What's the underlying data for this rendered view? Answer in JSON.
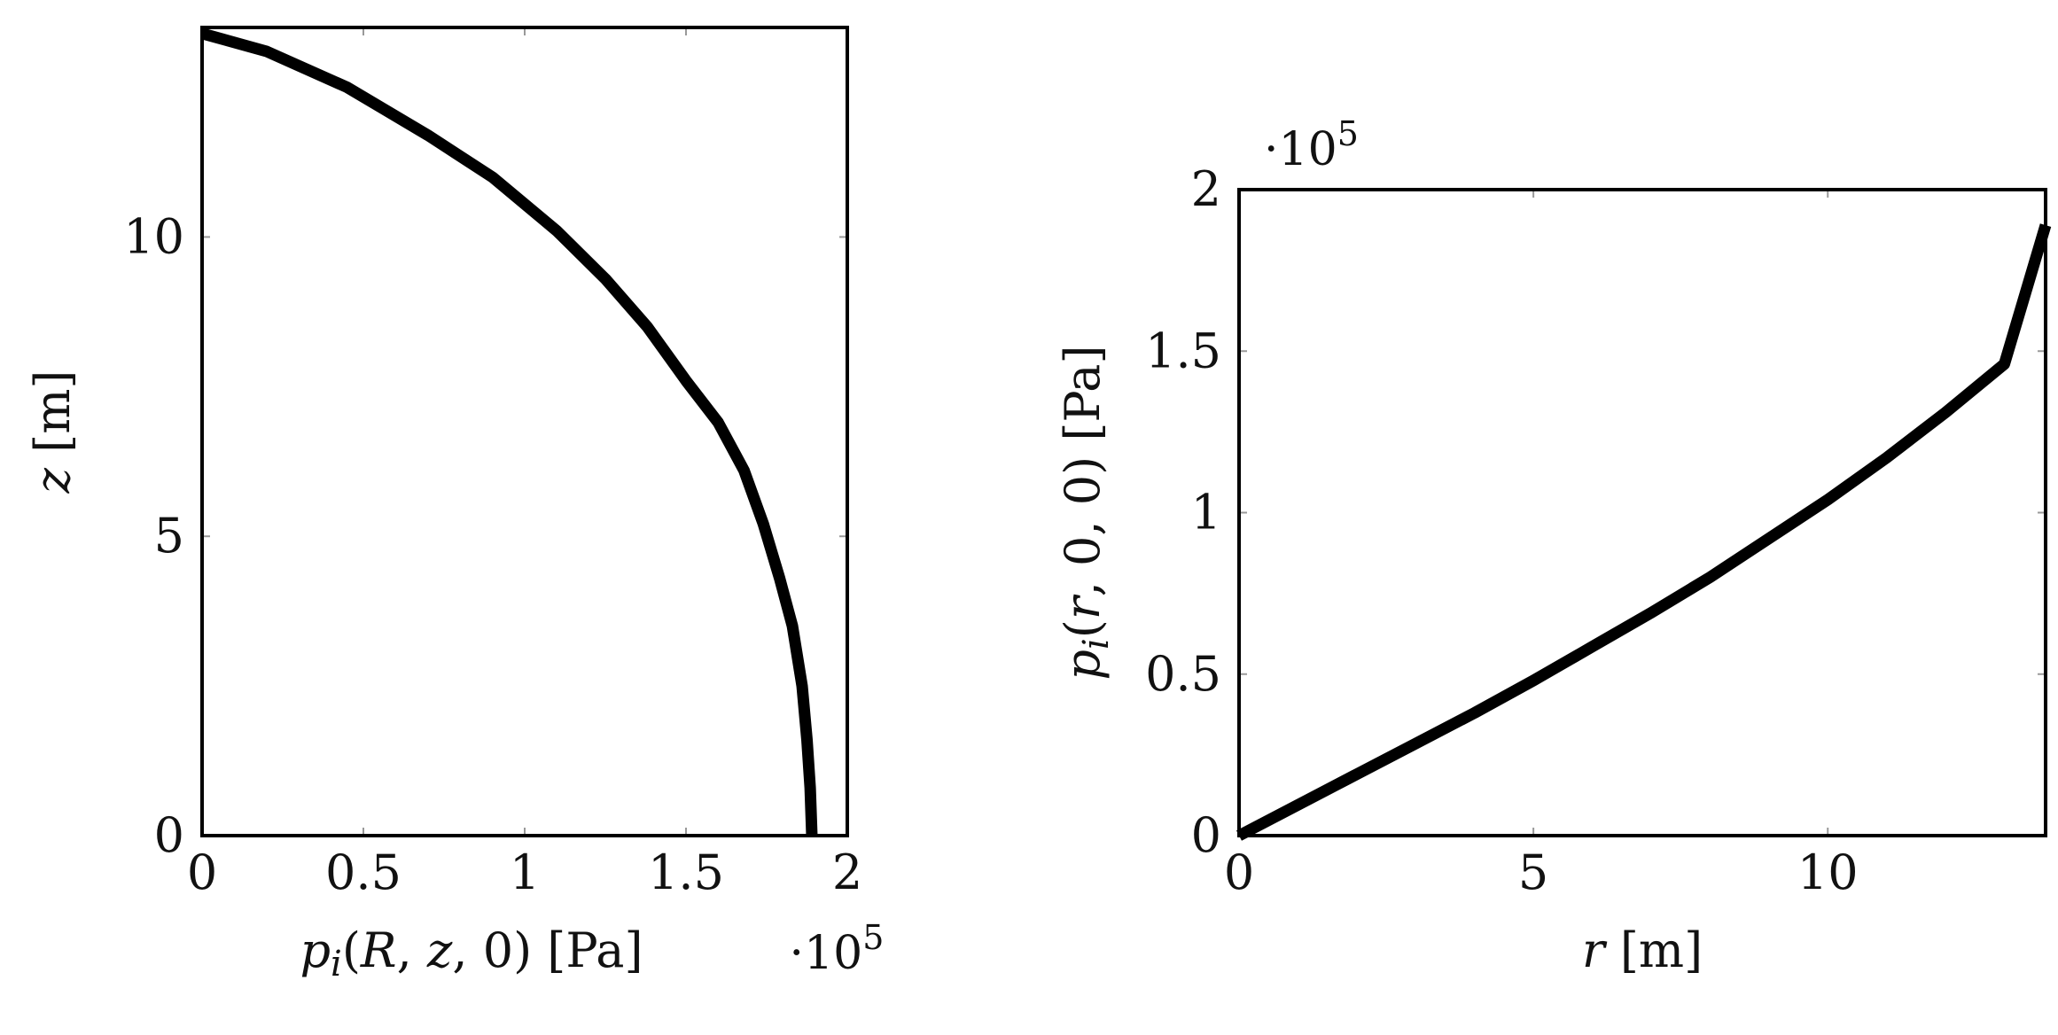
{
  "chart_data": [
    {
      "type": "line",
      "xlabel": "p_i(R, z, 0) [Pa]",
      "ylabel": "z [m]",
      "x_scale_label": "·10^5",
      "x_scale_factor": 100000,
      "xlim": [
        0,
        2
      ],
      "ylim": [
        0,
        13.5
      ],
      "xticks": [
        0,
        0.5,
        1,
        1.5,
        2
      ],
      "xtick_labels": [
        "0",
        "0.5",
        "1",
        "1.5",
        "2"
      ],
      "yticks": [
        0,
        5,
        10
      ],
      "ytick_labels": [
        "0",
        "5",
        "10"
      ],
      "grid": false,
      "series": [
        {
          "x": [
            1.89,
            1.885,
            1.875,
            1.86,
            1.83,
            1.79,
            1.74,
            1.68,
            1.6,
            1.5,
            1.38,
            1.25,
            1.1,
            0.9,
            0.7,
            0.45,
            0.2,
            0.0
          ],
          "y": [
            0,
            0.8,
            1.6,
            2.5,
            3.5,
            4.3,
            5.2,
            6.1,
            6.9,
            7.6,
            8.5,
            9.3,
            10.1,
            11.0,
            11.7,
            12.5,
            13.1,
            13.4
          ]
        }
      ]
    },
    {
      "type": "line",
      "xlabel": "r [m]",
      "ylabel": "p_i(r, 0, 0) [Pa]",
      "y_scale_label": "·10^5",
      "y_scale_factor": 100000,
      "xlim": [
        0,
        13.7
      ],
      "ylim": [
        0,
        2
      ],
      "xticks": [
        0,
        5,
        10
      ],
      "xtick_labels": [
        "0",
        "5",
        "10"
      ],
      "yticks": [
        0,
        0.5,
        1,
        1.5,
        2
      ],
      "ytick_labels": [
        "0",
        "0.5",
        "1",
        "1.5",
        "2"
      ],
      "grid": false,
      "series": [
        {
          "x": [
            0,
            1,
            2,
            3,
            4,
            5,
            6,
            7,
            8,
            9,
            10,
            11,
            12,
            13,
            13.7
          ],
          "y": [
            0,
            0.095,
            0.19,
            0.285,
            0.38,
            0.48,
            0.585,
            0.69,
            0.8,
            0.92,
            1.04,
            1.17,
            1.31,
            1.46,
            1.89
          ]
        }
      ]
    }
  ]
}
